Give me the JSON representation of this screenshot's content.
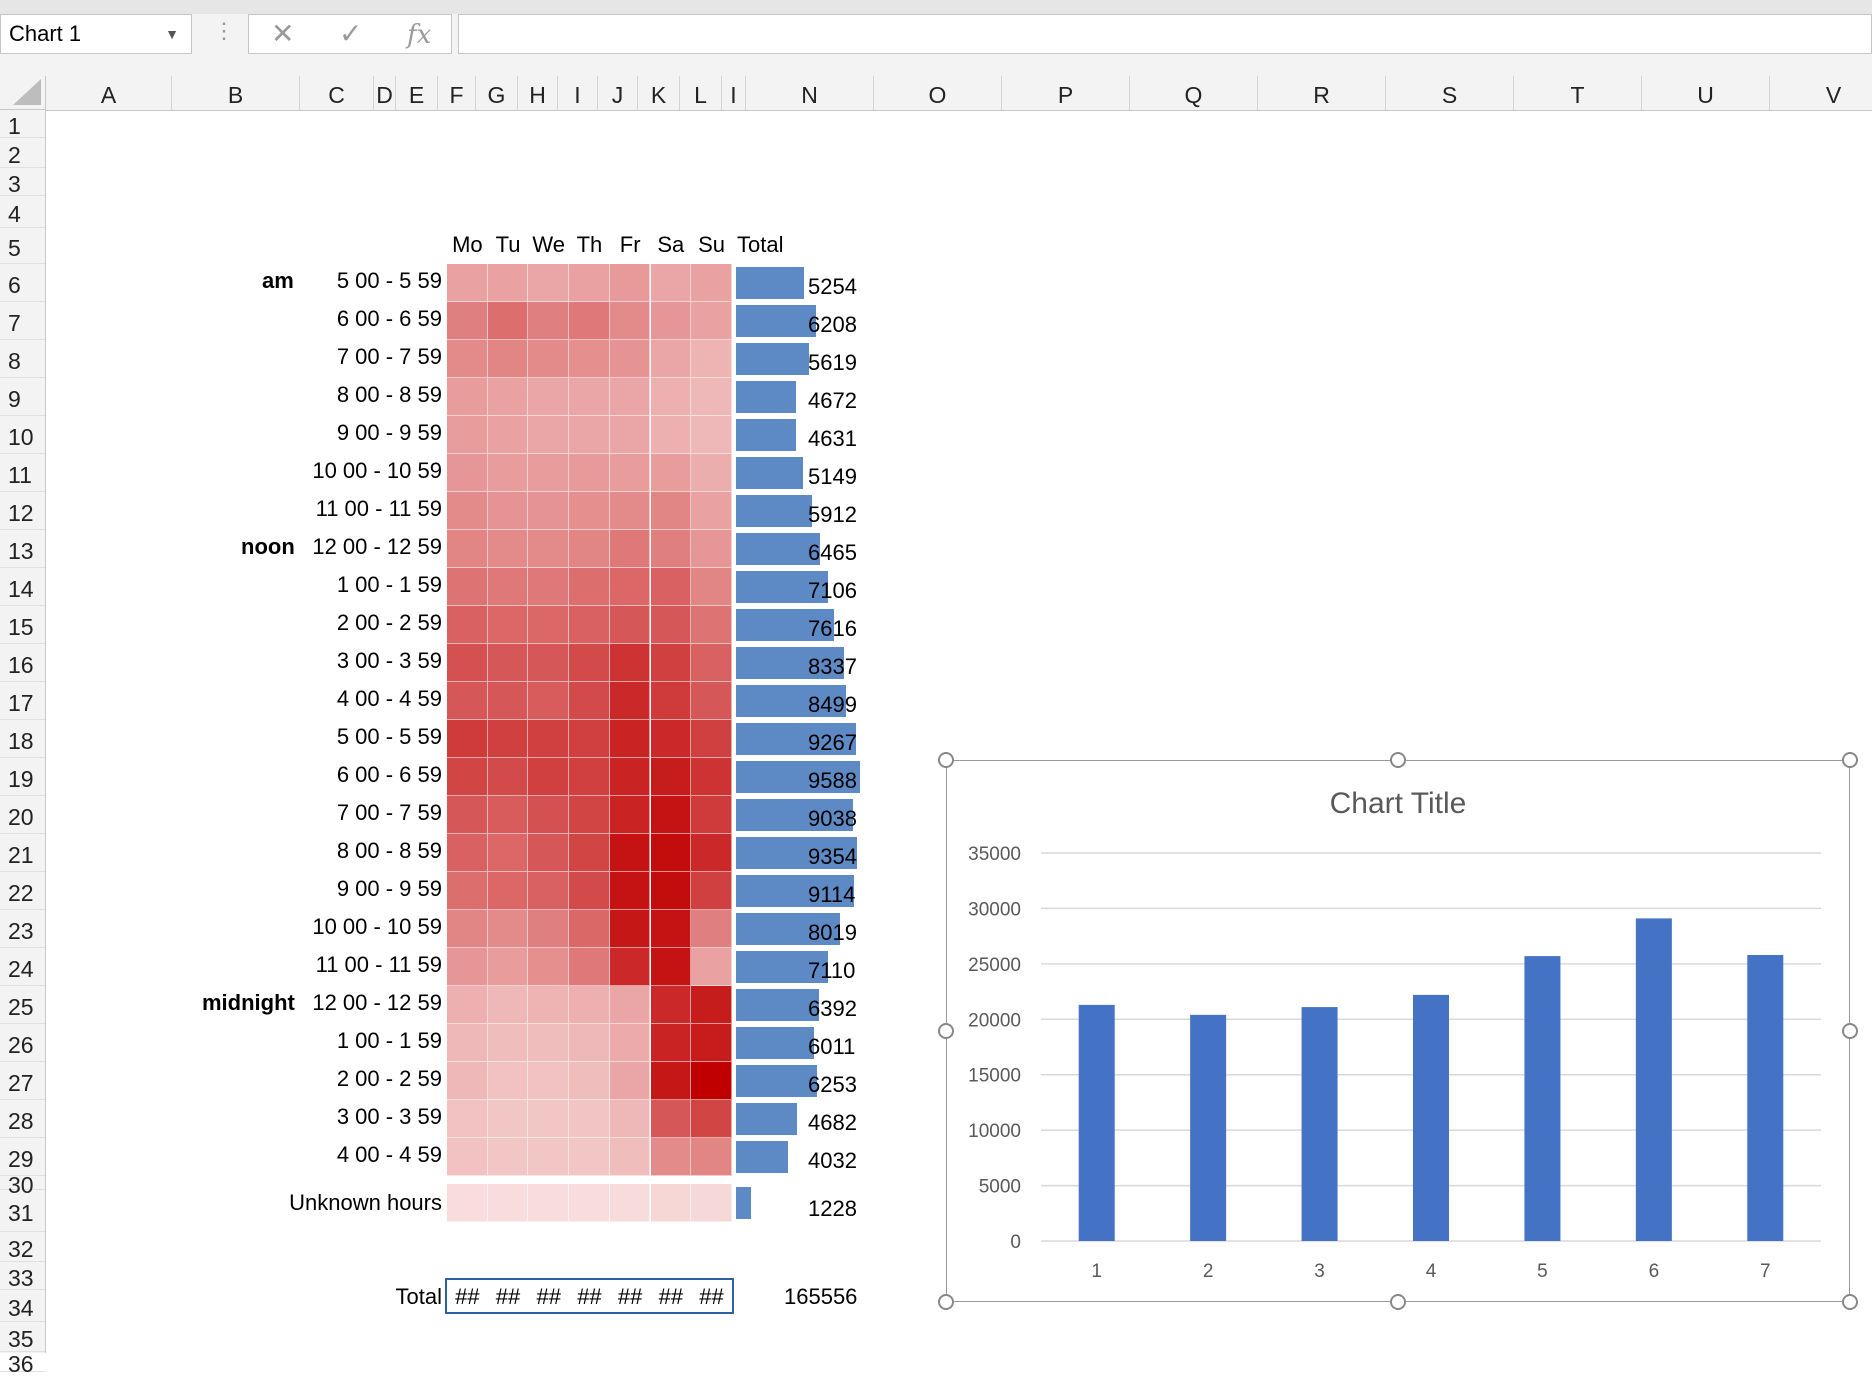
{
  "name_box": {
    "value": "Chart 1"
  },
  "formula_bar": {
    "cancel_glyph": "✕",
    "enter_glyph": "✓",
    "fx_label": "fx",
    "value": ""
  },
  "columns": [
    "A",
    "B",
    "C",
    "D",
    "E",
    "F",
    "G",
    "H",
    "I",
    "J",
    "K",
    "L",
    "I",
    "N",
    "O",
    "P",
    "Q",
    "R",
    "S",
    "T",
    "U",
    "V"
  ],
  "rows": [
    "1",
    "2",
    "3",
    "4",
    "5",
    "6",
    "7",
    "8",
    "9",
    "10",
    "11",
    "12",
    "13",
    "14",
    "15",
    "16",
    "17",
    "18",
    "19",
    "20",
    "21",
    "22",
    "23",
    "24",
    "25",
    "26",
    "27",
    "28",
    "29",
    "30",
    "31",
    "32",
    "33",
    "34",
    "35",
    "36"
  ],
  "sheet": {
    "day_headers": [
      "Mo",
      "Tu",
      "We",
      "Th",
      "Fr",
      "Sa",
      "Su"
    ],
    "total_header": "Total",
    "period_labels": {
      "am": "am",
      "noon": "noon",
      "midnight": "midnight"
    },
    "hour_ranges": [
      "5 00 -  5 59",
      "6 00 -  6 59",
      "7 00 -  7 59",
      "8 00 -  8 59",
      "9 00 -  9 59",
      "10 00 - 10 59",
      "11 00 - 11 59",
      "12 00 - 12 59",
      "1 00 -  1 59",
      "2 00 -  2 59",
      "3 00 -  3 59",
      "4 00 -  4 59",
      "5 00 -  5 59",
      "6 00 -  6 59",
      "7 00 -  7 59",
      "8 00 -  8 59",
      "9 00 -  9 59",
      "10 00 - 10 59",
      "11 00 - 11 59",
      "12 00 - 12 59",
      "1 00 -  1 59",
      "2 00 -  2 59",
      "3 00 -  3 59",
      "4 00 -  4 59"
    ],
    "hour_totals": [
      "5254",
      "6208",
      "5619",
      "4672",
      "4631",
      "5149",
      "5912",
      "6465",
      "7106",
      "7616",
      "8337",
      "8499",
      "9267",
      "9588",
      "9038",
      "9354",
      "9114",
      "8019",
      "7110",
      "6392",
      "6011",
      "6253",
      "4682",
      "4032"
    ],
    "unknown_label": "Unknown hours",
    "unknown_total": "1228",
    "total_label": "Total",
    "total_cells": [
      "##",
      "##",
      "##",
      "##",
      "##",
      "##",
      "##"
    ],
    "grand_total": "165556",
    "heat_levels": [
      [
        0.3,
        0.3,
        0.28,
        0.3,
        0.33,
        0.28,
        0.3
      ],
      [
        0.45,
        0.52,
        0.45,
        0.48,
        0.4,
        0.35,
        0.3
      ],
      [
        0.4,
        0.42,
        0.4,
        0.38,
        0.36,
        0.28,
        0.22
      ],
      [
        0.32,
        0.3,
        0.28,
        0.28,
        0.28,
        0.24,
        0.2
      ],
      [
        0.32,
        0.3,
        0.28,
        0.28,
        0.28,
        0.24,
        0.2
      ],
      [
        0.35,
        0.32,
        0.32,
        0.33,
        0.32,
        0.32,
        0.25
      ],
      [
        0.4,
        0.36,
        0.36,
        0.38,
        0.4,
        0.42,
        0.3
      ],
      [
        0.42,
        0.4,
        0.4,
        0.42,
        0.48,
        0.45,
        0.35
      ],
      [
        0.5,
        0.48,
        0.48,
        0.52,
        0.55,
        0.58,
        0.42
      ],
      [
        0.58,
        0.55,
        0.55,
        0.58,
        0.62,
        0.62,
        0.5
      ],
      [
        0.65,
        0.62,
        0.62,
        0.68,
        0.78,
        0.72,
        0.58
      ],
      [
        0.62,
        0.62,
        0.6,
        0.68,
        0.82,
        0.75,
        0.62
      ],
      [
        0.75,
        0.72,
        0.72,
        0.72,
        0.85,
        0.82,
        0.72
      ],
      [
        0.7,
        0.68,
        0.72,
        0.72,
        0.85,
        0.88,
        0.78
      ],
      [
        0.62,
        0.6,
        0.65,
        0.7,
        0.85,
        0.92,
        0.75
      ],
      [
        0.58,
        0.55,
        0.62,
        0.7,
        0.92,
        0.95,
        0.82
      ],
      [
        0.52,
        0.55,
        0.58,
        0.68,
        0.92,
        0.95,
        0.72
      ],
      [
        0.42,
        0.4,
        0.45,
        0.55,
        0.9,
        0.92,
        0.45
      ],
      [
        0.35,
        0.32,
        0.38,
        0.48,
        0.82,
        0.92,
        0.3
      ],
      [
        0.24,
        0.2,
        0.22,
        0.24,
        0.28,
        0.82,
        0.88
      ],
      [
        0.2,
        0.18,
        0.18,
        0.2,
        0.26,
        0.85,
        0.88
      ],
      [
        0.2,
        0.16,
        0.16,
        0.18,
        0.28,
        0.9,
        1.0
      ],
      [
        0.16,
        0.14,
        0.14,
        0.15,
        0.2,
        0.62,
        0.7
      ],
      [
        0.16,
        0.14,
        0.14,
        0.14,
        0.18,
        0.4,
        0.42
      ]
    ],
    "unknown_levels": [
      0.04,
      0.04,
      0.04,
      0.04,
      0.05,
      0.07,
      0.06
    ]
  },
  "colors": {
    "bar": "#5d89c4",
    "chart_bar": "#4472c4",
    "heat_low": "#fbe6e6",
    "heat_high": "#c00000"
  },
  "chart_data": {
    "type": "bar",
    "title": "Chart Title",
    "categories": [
      "1",
      "2",
      "3",
      "4",
      "5",
      "6",
      "7"
    ],
    "values": [
      21300,
      20400,
      21100,
      22200,
      25700,
      29100,
      25800
    ],
    "ylim": [
      0,
      35000
    ],
    "yticks": [
      "0",
      "5000",
      "10000",
      "15000",
      "20000",
      "25000",
      "30000",
      "35000"
    ],
    "grid": true,
    "legend": "none"
  }
}
